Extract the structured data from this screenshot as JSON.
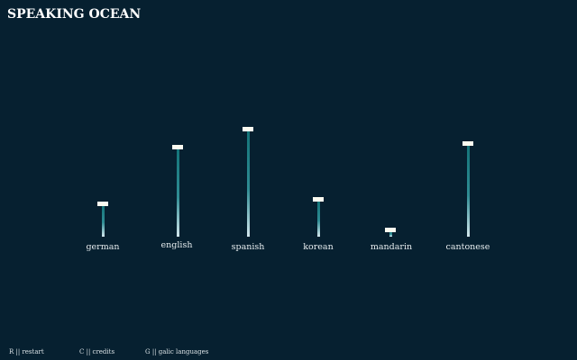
{
  "header": {
    "title": "SPEAKING OCEAN"
  },
  "languages": [
    "german",
    "english",
    "spanish",
    "korean",
    "mandarin",
    "cantonese"
  ],
  "controls": [
    "R || restart",
    "C || credits",
    "G || galic languages"
  ]
}
